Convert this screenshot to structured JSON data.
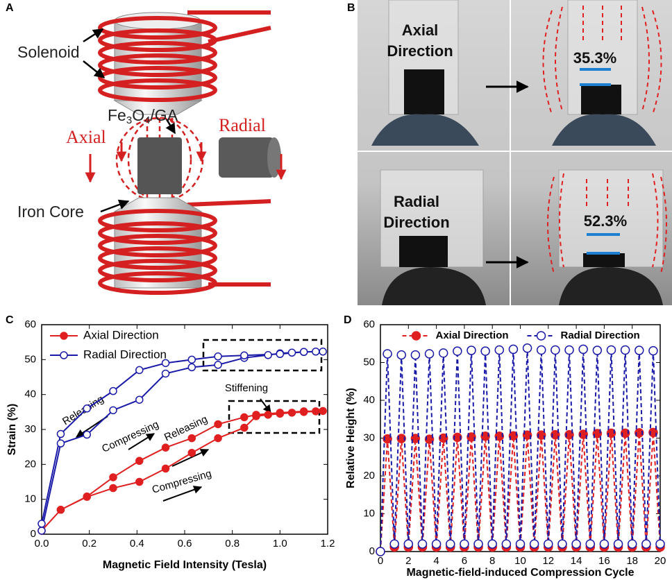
{
  "diagram": {
    "label": "A",
    "solenoid": "Solenoid",
    "sample": [
      "Fe",
      "3",
      "O",
      "4",
      "/GA"
    ],
    "axial": "Axial",
    "radial": "Radial",
    "core": "Iron Core"
  },
  "photo": {
    "label": "B",
    "axial": [
      "Axial",
      "Direction"
    ],
    "axial_value": "35.3%",
    "radial": [
      "Radial",
      "Direction"
    ],
    "radial_value": "52.3%"
  },
  "chart_data": [
    {
      "type": "line",
      "label": "C",
      "xlabel": "Magnetic Field Intensity (Tesla)",
      "ylabel": "Strain (%)",
      "xlim": [
        0,
        1.2
      ],
      "xticks": [
        {
          "value": 0,
          "label": "0.0"
        },
        0.2,
        0.4,
        0.6,
        0.8,
        {
          "value": 1,
          "label": "1.0"
        },
        1.2
      ],
      "ylim": [
        0,
        60
      ],
      "yticks": [
        0,
        10,
        20,
        30,
        40,
        50,
        60
      ],
      "legend": "upper left",
      "annotations": [
        "Releasing",
        "Compressing",
        "Releasing",
        "Compressing",
        "Stiffening"
      ],
      "series": [
        {
          "name": "Axial Direction",
          "color": "#e02020",
          "marker": "filled",
          "linestyle": "solid",
          "x": [
            0,
            0.08,
            0.19,
            0.3,
            0.41,
            0.52,
            0.63,
            0.74,
            0.85,
            0.9,
            0.95,
            1.0,
            1.05,
            1.1,
            1.15,
            1.18,
            1.1,
            1.0,
            0.9,
            0.85,
            0.74,
            0.63,
            0.52,
            0.41,
            0.3,
            0.19,
            0.08,
            0
          ],
          "values": [
            1,
            7,
            10.7,
            13.2,
            15,
            18.8,
            23.3,
            27.5,
            30.5,
            33.8,
            34.2,
            34.5,
            34.8,
            35,
            35.2,
            35.3,
            35.2,
            34.8,
            34.2,
            33.5,
            31.5,
            27.5,
            24.8,
            21,
            16.3,
            10.8,
            7,
            1
          ]
        },
        {
          "name": "Radial Direction",
          "color": "#1a1aa8",
          "marker": "open",
          "linestyle": "solid",
          "x": [
            0,
            0.08,
            0.19,
            0.3,
            0.41,
            0.52,
            0.63,
            0.74,
            0.85,
            0.95,
            1.0,
            1.05,
            1.1,
            1.15,
            1.18,
            1.1,
            1.0,
            0.85,
            0.74,
            0.63,
            0.52,
            0.41,
            0.3,
            0.19,
            0.08,
            0
          ],
          "values": [
            1,
            26,
            28.5,
            35.5,
            38.5,
            46,
            47.8,
            48.5,
            50.5,
            51.3,
            51.8,
            52,
            52.2,
            52.3,
            52.3,
            52.2,
            51.6,
            51.2,
            50.9,
            50,
            49,
            47,
            41,
            36,
            28.7,
            3
          ]
        }
      ]
    },
    {
      "type": "line",
      "label": "D",
      "xlabel": "Magnetic-field-induced Compression Cycle",
      "ylabel": "Relative Height (%)",
      "xlim": [
        0,
        20
      ],
      "xticks": [
        0,
        2,
        4,
        6,
        8,
        10,
        12,
        14,
        16,
        18,
        20
      ],
      "ylim": [
        0,
        60
      ],
      "yticks": [
        0,
        10,
        20,
        30,
        40,
        50,
        60
      ],
      "legend": "upper center",
      "x": [
        0,
        0.5,
        1,
        1.5,
        2,
        2.5,
        3,
        3.5,
        4,
        4.5,
        5,
        5.5,
        6,
        6.5,
        7,
        7.5,
        8,
        8.5,
        9,
        9.5,
        10,
        10.5,
        11,
        11.5,
        12,
        12.5,
        13,
        13.5,
        14,
        14.5,
        15,
        15.5,
        16,
        16.5,
        17,
        17.5,
        18,
        18.5,
        19,
        19.5,
        20
      ],
      "series": [
        {
          "name": "Axial Direction",
          "color": "#e02020",
          "marker": "filled",
          "linestyle": "dashed",
          "values": [
            0,
            29.8,
            1.2,
            29.9,
            1.2,
            29.9,
            1.2,
            29.7,
            1.2,
            30.0,
            1.2,
            30.2,
            1.2,
            30.3,
            1.2,
            30.5,
            1.2,
            30.5,
            1.2,
            30.6,
            1.2,
            30.8,
            1.2,
            30.8,
            1.2,
            30.9,
            1.2,
            30.9,
            1.2,
            31.0,
            1.2,
            31.2,
            1.2,
            31.3,
            1.2,
            31.3,
            1.2,
            31.4,
            1.2,
            31.5,
            1.2
          ]
        },
        {
          "name": "Radial Direction",
          "color": "#1a1aa8",
          "marker": "open",
          "linestyle": "dashed",
          "values": [
            0,
            52.3,
            2,
            52,
            2,
            52,
            2,
            52.3,
            2,
            52.5,
            2,
            53,
            2,
            53.2,
            2,
            53,
            2,
            53.3,
            2,
            53.5,
            2,
            53.8,
            2,
            53.3,
            2,
            53.3,
            2,
            53.3,
            2,
            53.5,
            2,
            53.2,
            2,
            53.3,
            2,
            53.3,
            2,
            53.2,
            2,
            53.1,
            2
          ]
        }
      ]
    }
  ]
}
